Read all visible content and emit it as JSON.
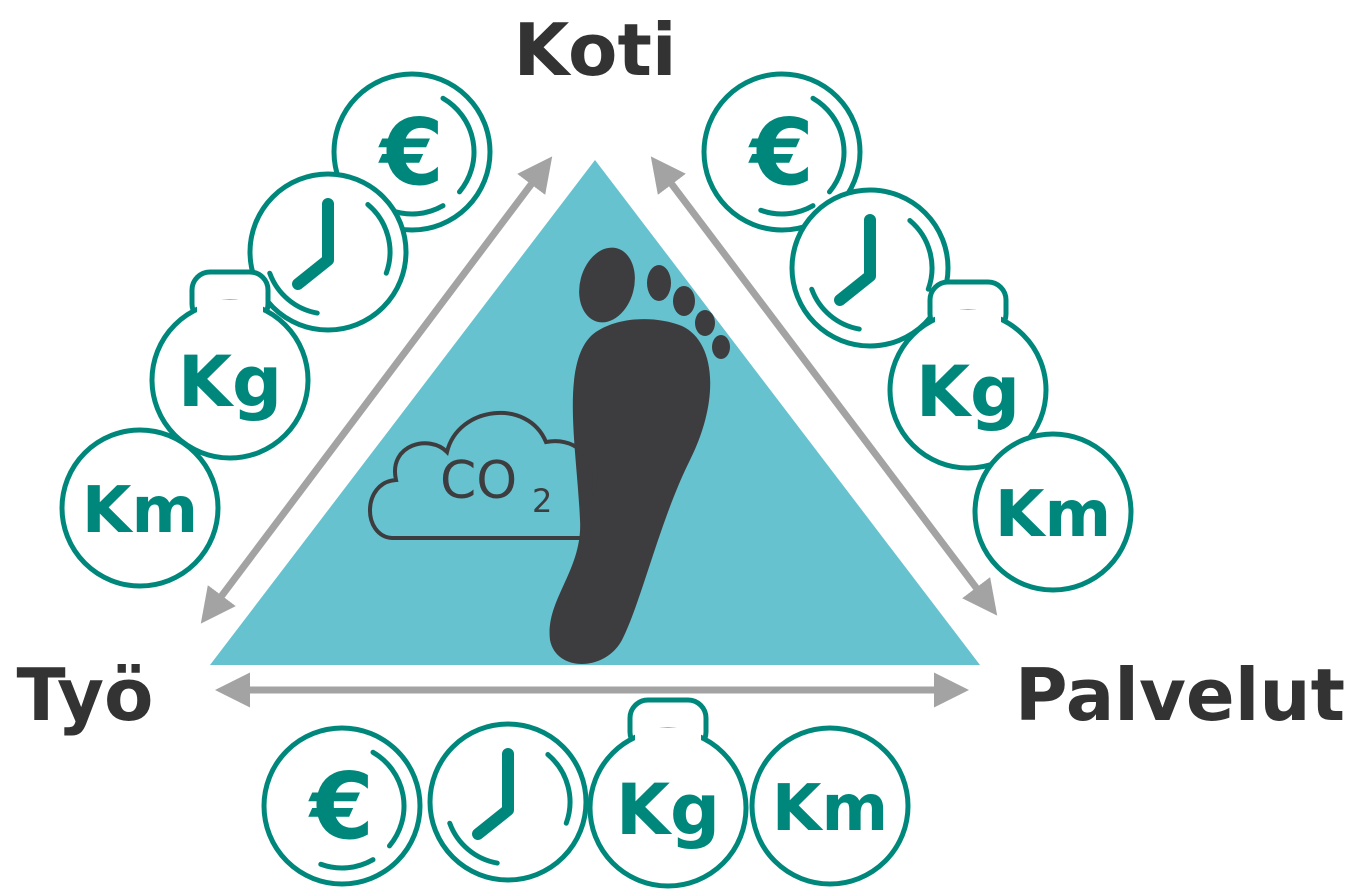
{
  "nodes": [
    {
      "label": "Koti"
    },
    {
      "label": "Työ"
    },
    {
      "label": "Palvelut"
    }
  ],
  "edges": [
    {
      "icons": [
        "€",
        "Kg",
        "Km"
      ]
    },
    {
      "icons": [
        "€",
        "Kg",
        "Km"
      ]
    },
    {
      "icons": [
        "€",
        "Kg",
        "Km"
      ]
    }
  ],
  "cloud": {
    "label": "CO",
    "subscript": "2"
  }
}
